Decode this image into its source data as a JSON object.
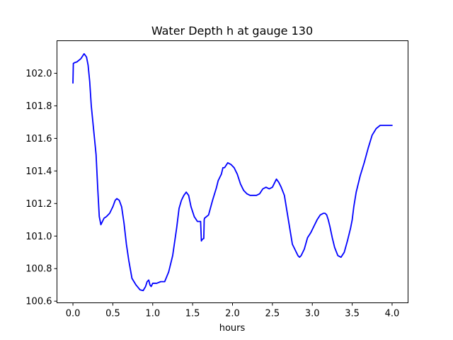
{
  "chart_data": {
    "type": "line",
    "title": "Water Depth h at gauge 130",
    "xlabel": "hours",
    "ylabel": "",
    "xlim": [
      -0.2,
      4.2
    ],
    "ylim": [
      100.59,
      102.2
    ],
    "xticks": [
      0.0,
      0.5,
      1.0,
      1.5,
      2.0,
      2.5,
      3.0,
      3.5,
      4.0
    ],
    "xtick_labels": [
      "0.0",
      "0.5",
      "1.0",
      "1.5",
      "2.0",
      "2.5",
      "3.0",
      "3.5",
      "4.0"
    ],
    "yticks": [
      100.6,
      100.8,
      101.0,
      101.2,
      101.4,
      101.6,
      101.8,
      102.0
    ],
    "ytick_labels": [
      "100.6",
      "100.8",
      "101.0",
      "101.2",
      "101.4",
      "101.6",
      "101.8",
      "102.0"
    ],
    "grid": false,
    "series": [
      {
        "color": "#0000ff",
        "x": [
          0.0,
          0.005,
          0.02,
          0.05,
          0.1,
          0.14,
          0.17,
          0.19,
          0.21,
          0.23,
          0.26,
          0.29,
          0.31,
          0.33,
          0.35,
          0.37,
          0.39,
          0.42,
          0.46,
          0.5,
          0.53,
          0.55,
          0.58,
          0.61,
          0.64,
          0.67,
          0.7,
          0.74,
          0.79,
          0.84,
          0.88,
          0.91,
          0.93,
          0.95,
          0.965,
          0.98,
          1.0,
          1.05,
          1.1,
          1.15,
          1.2,
          1.25,
          1.3,
          1.33,
          1.36,
          1.39,
          1.42,
          1.45,
          1.48,
          1.52,
          1.56,
          1.6,
          1.61,
          1.62,
          1.64,
          1.645,
          1.65,
          1.7,
          1.75,
          1.8,
          1.82,
          1.84,
          1.86,
          1.88,
          1.9,
          1.94,
          1.98,
          2.02,
          2.06,
          2.1,
          2.14,
          2.18,
          2.22,
          2.26,
          2.3,
          2.34,
          2.38,
          2.42,
          2.46,
          2.5,
          2.53,
          2.55,
          2.58,
          2.61,
          2.65,
          2.7,
          2.75,
          2.78,
          2.8,
          2.82,
          2.84,
          2.86,
          2.88,
          2.9,
          2.94,
          2.98,
          3.02,
          3.06,
          3.1,
          3.14,
          3.16,
          3.18,
          3.2,
          3.22,
          3.25,
          3.28,
          3.32,
          3.36,
          3.4,
          3.44,
          3.48,
          3.5,
          3.52,
          3.55,
          3.6,
          3.65,
          3.7,
          3.75,
          3.8,
          3.85,
          3.9,
          3.94,
          3.97,
          4.0
        ],
        "y": [
          101.94,
          102.06,
          102.065,
          102.07,
          102.09,
          102.12,
          102.1,
          102.05,
          101.95,
          101.8,
          101.65,
          101.5,
          101.3,
          101.12,
          101.07,
          101.09,
          101.11,
          101.12,
          101.14,
          101.18,
          101.22,
          101.23,
          101.22,
          101.18,
          101.08,
          100.95,
          100.85,
          100.74,
          100.7,
          100.67,
          100.665,
          100.69,
          100.72,
          100.73,
          100.7,
          100.69,
          100.71,
          100.71,
          100.72,
          100.72,
          100.78,
          100.88,
          101.05,
          101.17,
          101.22,
          101.25,
          101.27,
          101.25,
          101.18,
          101.12,
          101.09,
          101.09,
          100.97,
          100.98,
          100.985,
          101.1,
          101.11,
          101.13,
          101.22,
          101.3,
          101.34,
          101.36,
          101.38,
          101.42,
          101.42,
          101.45,
          101.44,
          101.42,
          101.38,
          101.32,
          101.28,
          101.26,
          101.25,
          101.25,
          101.25,
          101.26,
          101.29,
          101.3,
          101.29,
          101.3,
          101.33,
          101.35,
          101.33,
          101.3,
          101.25,
          101.1,
          100.95,
          100.92,
          100.9,
          100.88,
          100.87,
          100.88,
          100.9,
          100.92,
          100.99,
          101.02,
          101.06,
          101.1,
          101.13,
          101.14,
          101.14,
          101.13,
          101.1,
          101.06,
          100.99,
          100.93,
          100.88,
          100.87,
          100.9,
          100.97,
          101.05,
          101.1,
          101.18,
          101.27,
          101.37,
          101.45,
          101.54,
          101.62,
          101.66,
          101.68,
          101.68,
          101.68,
          101.68,
          101.68
        ]
      }
    ]
  }
}
